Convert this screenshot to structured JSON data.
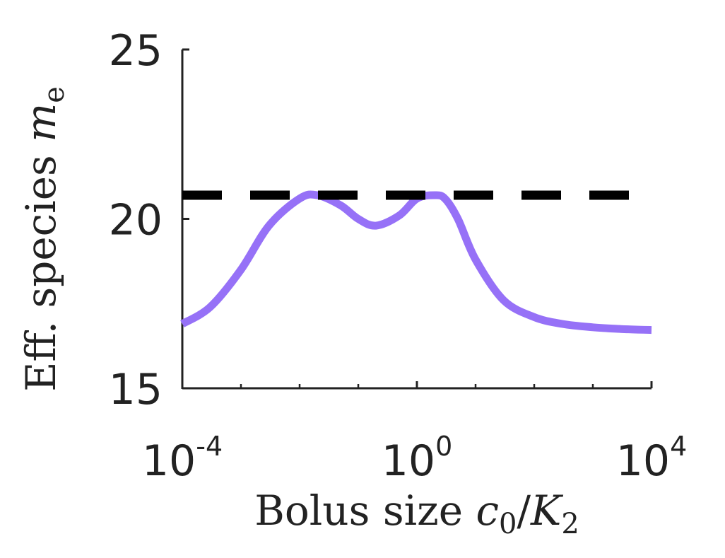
{
  "chart_data": {
    "type": "line",
    "xscale": "log",
    "xlim": [
      0.0001,
      10000
    ],
    "ylim": [
      15,
      25
    ],
    "grid": false,
    "xticks": [
      {
        "value": 0.0001,
        "base": "10",
        "exp": "-4"
      },
      {
        "value": 1,
        "base": "10",
        "exp": "0"
      },
      {
        "value": 10000,
        "base": "10",
        "exp": "4"
      }
    ],
    "yticks": [
      {
        "value": 15,
        "label": "15"
      },
      {
        "value": 20,
        "label": "20"
      },
      {
        "value": 25,
        "label": "25"
      }
    ],
    "xlabel": {
      "text": "Bolus size ",
      "var": "c",
      "sub": "0",
      "slash": "/",
      "var2": "K",
      "sub2": "2"
    },
    "ylabel": {
      "text": "Eff. species ",
      "var": "m",
      "sub": "e"
    },
    "series": [
      {
        "style": "solid",
        "color": "#9671F7",
        "x": [
          0.0001,
          0.0003,
          0.001,
          0.003,
          0.01,
          0.02,
          0.05,
          0.1,
          0.2,
          0.5,
          1,
          2,
          3,
          5,
          10,
          30,
          100,
          300,
          1000,
          3000,
          10000
        ],
        "y": [
          16.9,
          17.4,
          18.5,
          19.8,
          20.6,
          20.7,
          20.4,
          20.0,
          19.8,
          20.1,
          20.6,
          20.7,
          20.6,
          20.0,
          18.8,
          17.6,
          17.1,
          16.9,
          16.8,
          16.75,
          16.72
        ]
      },
      {
        "style": "dashed",
        "color": "#000000",
        "x": [
          0.0001,
          10000
        ],
        "y": [
          20.7,
          20.7
        ]
      }
    ]
  }
}
